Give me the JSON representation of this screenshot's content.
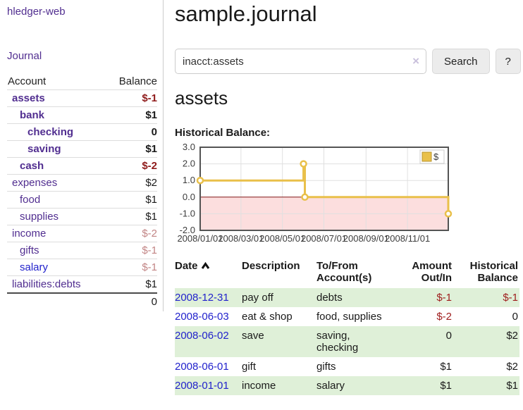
{
  "colors": {
    "link_purple": "#512e90",
    "link_blue": "#2222cc",
    "negative_dark": "#8f1b1b",
    "negative_light": "#c28585",
    "table_negative": "#9e1c1c",
    "row_stripe_green": "#dff0d8"
  },
  "sidebar": {
    "app_title": "hledger-web",
    "nav": {
      "journal": "Journal"
    },
    "accounts_table": {
      "headers": [
        "Account",
        "Balance"
      ],
      "rows": [
        {
          "name": "assets",
          "depth": 1,
          "bold": true,
          "balance": "$-1",
          "neg": true
        },
        {
          "name": "bank",
          "depth": 2,
          "bold": true,
          "balance": "$1"
        },
        {
          "name": "checking",
          "depth": 3,
          "bold": true,
          "balance": "0"
        },
        {
          "name": "saving",
          "depth": 3,
          "bold": true,
          "balance": "$1"
        },
        {
          "name": "cash",
          "depth": 2,
          "bold": true,
          "balance": "$-2",
          "neg": true
        },
        {
          "name": "expenses",
          "depth": 1,
          "balance": "$2"
        },
        {
          "name": "food",
          "depth": 2,
          "balance": "$1"
        },
        {
          "name": "supplies",
          "depth": 2,
          "balance": "$1"
        },
        {
          "name": "income",
          "depth": 1,
          "balance": "$-2",
          "neg": true
        },
        {
          "name": "gifts",
          "depth": 2,
          "balance": "$-1",
          "neg": true
        },
        {
          "name": "salary",
          "depth": 2,
          "balance": "$-1",
          "neg": true,
          "blue": true
        },
        {
          "name": "liabilities:debts",
          "depth": 1,
          "balance": "$1"
        }
      ],
      "total": "0"
    }
  },
  "header": {
    "title": "sample.journal"
  },
  "search": {
    "value": "inacct:assets",
    "clear_icon": "×",
    "button": "Search",
    "help_button": "?"
  },
  "account_page": {
    "title": "assets",
    "chart_title": "Historical Balance:"
  },
  "chart_data": {
    "type": "line",
    "step": true,
    "title": "Historical Balance:",
    "series": [
      {
        "name": "$",
        "points": [
          {
            "date": "2008-01-01",
            "value": 1.0
          },
          {
            "date": "2008-06-01",
            "value": 2.0
          },
          {
            "date": "2008-06-03",
            "value": 0.0
          },
          {
            "date": "2008-12-31",
            "value": -1.0
          }
        ]
      }
    ],
    "x_range": [
      "2008-01-01",
      "2008-12-31"
    ],
    "x_ticks": [
      "2008/01/01",
      "2008/03/01",
      "2008/05/01",
      "2008/07/01",
      "2008/09/01",
      "2008/11/01"
    ],
    "y_ticks": [
      "3.0",
      "2.0",
      "1.0",
      "0.0",
      "-1.0",
      "-2.0"
    ],
    "ylim": [
      -2,
      3
    ],
    "grid": true,
    "legend": {
      "label": "$",
      "position": "top-right"
    },
    "colors": {
      "line": "#e9c04a",
      "marker_fill": "#ffffff",
      "negative_fill": "#fcdede",
      "zero_line": "#871919",
      "grid": "#e0e0e0",
      "frame": "#545454"
    }
  },
  "register_table": {
    "headers": {
      "date": "Date",
      "description": "Description",
      "accounts": "To/From Account(s)",
      "amount": "Amount Out/In",
      "balance": "Historical Balance"
    },
    "sort": {
      "column": "date",
      "direction": "ascending"
    },
    "rows": [
      {
        "date": "2008-12-31",
        "description": "pay off",
        "accounts": "debts",
        "amount": "$-1",
        "amount_neg": true,
        "balance": "$-1",
        "balance_neg": true
      },
      {
        "date": "2008-06-03",
        "description": "eat & shop",
        "accounts": "food, supplies",
        "amount": "$-2",
        "amount_neg": true,
        "balance": "0"
      },
      {
        "date": "2008-06-02",
        "description": "save",
        "accounts": "saving, checking",
        "amount": "0",
        "balance": "$2"
      },
      {
        "date": "2008-06-01",
        "description": "gift",
        "accounts": "gifts",
        "amount": "$1",
        "balance": "$2"
      },
      {
        "date": "2008-01-01",
        "description": "income",
        "accounts": "salary",
        "amount": "$1",
        "balance": "$1"
      }
    ]
  }
}
